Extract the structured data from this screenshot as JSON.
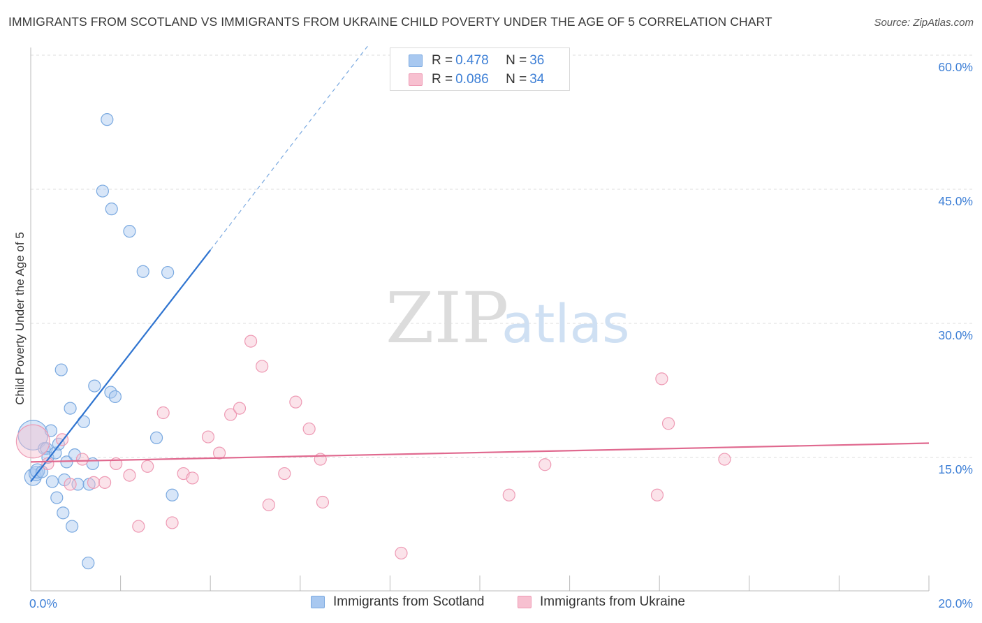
{
  "header": {
    "title": "IMMIGRANTS FROM SCOTLAND VS IMMIGRANTS FROM UKRAINE CHILD POVERTY UNDER THE AGE OF 5 CORRELATION CHART",
    "source": "Source: ZipAtlas.com"
  },
  "watermark": {
    "zip": "ZIP",
    "atlas": "atlas"
  },
  "legend": {
    "rows": [
      {
        "r_label": "R = ",
        "r_value": "0.478",
        "n_label": "N = ",
        "n_value": "36"
      },
      {
        "r_label": "R = ",
        "r_value": "0.086",
        "n_label": "N = ",
        "n_value": "34"
      }
    ]
  },
  "colors": {
    "scotland_fill": "#a8c8f0",
    "scotland_stroke": "#7aa9e0",
    "scotland_line": "#2f74d0",
    "ukraine_fill": "#f7c0d0",
    "ukraine_stroke": "#ee9ab4",
    "ukraine_line": "#e0698f",
    "tick_text": "#3d7fd6",
    "grid": "#dddddd"
  },
  "chart_data": {
    "type": "scatter",
    "title": "IMMIGRANTS FROM SCOTLAND VS IMMIGRANTS FROM UKRAINE CHILD POVERTY UNDER THE AGE OF 5 CORRELATION CHART",
    "xlabel": "",
    "ylabel": "Child Poverty Under the Age of 5",
    "xlim": [
      0,
      20
    ],
    "ylim": [
      0,
      62
    ],
    "x_ticks": [
      {
        "value": 0,
        "label": "0.0%"
      },
      {
        "value": 20,
        "label": "20.0%"
      }
    ],
    "y_ticks": [
      {
        "value": 15,
        "label": "15.0%"
      },
      {
        "value": 30,
        "label": "30.0%"
      },
      {
        "value": 45,
        "label": "45.0%"
      },
      {
        "value": 60,
        "label": "60.0%"
      }
    ],
    "grid": true,
    "series": [
      {
        "name": "Immigrants from Scotland",
        "color": "#a8c8f0",
        "R": 0.478,
        "N": 36,
        "points": [
          [
            0.05,
            17.5,
            2.5
          ],
          [
            0.05,
            12.8,
            1.4
          ],
          [
            0.12,
            13.2,
            1.2
          ],
          [
            0.15,
            13.5,
            1.2
          ],
          [
            0.25,
            13.4,
            1.0
          ],
          [
            0.3,
            16.0,
            1.0
          ],
          [
            0.35,
            16.0,
            1.0
          ],
          [
            0.38,
            15.0,
            1.0
          ],
          [
            0.45,
            18.0,
            1.0
          ],
          [
            0.48,
            12.3,
            1.0
          ],
          [
            0.55,
            15.5,
            1.0
          ],
          [
            0.58,
            10.5,
            1.0
          ],
          [
            0.62,
            16.5,
            1.0
          ],
          [
            0.68,
            24.8,
            1.0
          ],
          [
            0.72,
            8.8,
            1.0
          ],
          [
            0.75,
            12.5,
            1.0
          ],
          [
            0.8,
            14.5,
            1.0
          ],
          [
            0.88,
            20.5,
            1.0
          ],
          [
            0.92,
            7.3,
            1.0
          ],
          [
            0.98,
            15.3,
            1.0
          ],
          [
            1.05,
            12.0,
            1.0
          ],
          [
            1.18,
            19.0,
            1.0
          ],
          [
            1.28,
            3.2,
            1.0
          ],
          [
            1.3,
            12.0,
            1.0
          ],
          [
            1.38,
            14.3,
            1.0
          ],
          [
            1.42,
            23.0,
            1.0
          ],
          [
            1.6,
            44.8,
            1.0
          ],
          [
            1.7,
            52.8,
            1.0
          ],
          [
            1.78,
            22.3,
            1.0
          ],
          [
            1.8,
            42.8,
            1.0
          ],
          [
            1.88,
            21.8,
            1.0
          ],
          [
            2.2,
            40.3,
            1.0
          ],
          [
            2.5,
            35.8,
            1.0
          ],
          [
            2.8,
            17.2,
            1.0
          ],
          [
            3.05,
            35.7,
            1.0
          ],
          [
            3.15,
            10.8,
            1.0
          ]
        ],
        "trendline": {
          "x0": 0.0,
          "y0": 12.3,
          "x1": 4.0,
          "y1": 38.2,
          "dashed_to_x": 7.5,
          "dashed_to_y": 61.0
        }
      },
      {
        "name": "Immigrants from Ukraine",
        "color": "#f7c0d0",
        "R": 0.086,
        "N": 34,
        "points": [
          [
            0.05,
            16.8,
            2.8
          ],
          [
            0.38,
            14.3,
            1.0
          ],
          [
            0.7,
            17.0,
            1.0
          ],
          [
            0.88,
            12.0,
            1.0
          ],
          [
            1.15,
            14.8,
            1.0
          ],
          [
            1.4,
            12.2,
            1.0
          ],
          [
            1.65,
            12.2,
            1.0
          ],
          [
            1.9,
            14.3,
            1.0
          ],
          [
            2.2,
            13.0,
            1.0
          ],
          [
            2.4,
            7.3,
            1.0
          ],
          [
            2.6,
            14.0,
            1.0
          ],
          [
            2.95,
            20.0,
            1.0
          ],
          [
            3.15,
            7.7,
            1.0
          ],
          [
            3.4,
            13.2,
            1.0
          ],
          [
            3.6,
            12.7,
            1.0
          ],
          [
            3.95,
            17.3,
            1.0
          ],
          [
            4.2,
            15.5,
            1.0
          ],
          [
            4.45,
            19.8,
            1.0
          ],
          [
            4.65,
            20.5,
            1.0
          ],
          [
            4.9,
            28.0,
            1.0
          ],
          [
            5.15,
            25.2,
            1.0
          ],
          [
            5.3,
            9.7,
            1.0
          ],
          [
            5.65,
            13.2,
            1.0
          ],
          [
            5.9,
            21.2,
            1.0
          ],
          [
            6.2,
            18.2,
            1.0
          ],
          [
            6.45,
            14.8,
            1.0
          ],
          [
            6.5,
            10.0,
            1.0
          ],
          [
            8.25,
            4.3,
            1.0
          ],
          [
            10.65,
            10.8,
            1.0
          ],
          [
            11.45,
            14.2,
            1.0
          ],
          [
            13.95,
            10.8,
            1.0
          ],
          [
            14.05,
            23.8,
            1.0
          ],
          [
            14.2,
            18.8,
            1.0
          ],
          [
            15.45,
            14.8,
            1.0
          ]
        ],
        "trendline": {
          "x0": 0.0,
          "y0": 14.5,
          "x1": 20.0,
          "y1": 16.6
        }
      }
    ]
  }
}
